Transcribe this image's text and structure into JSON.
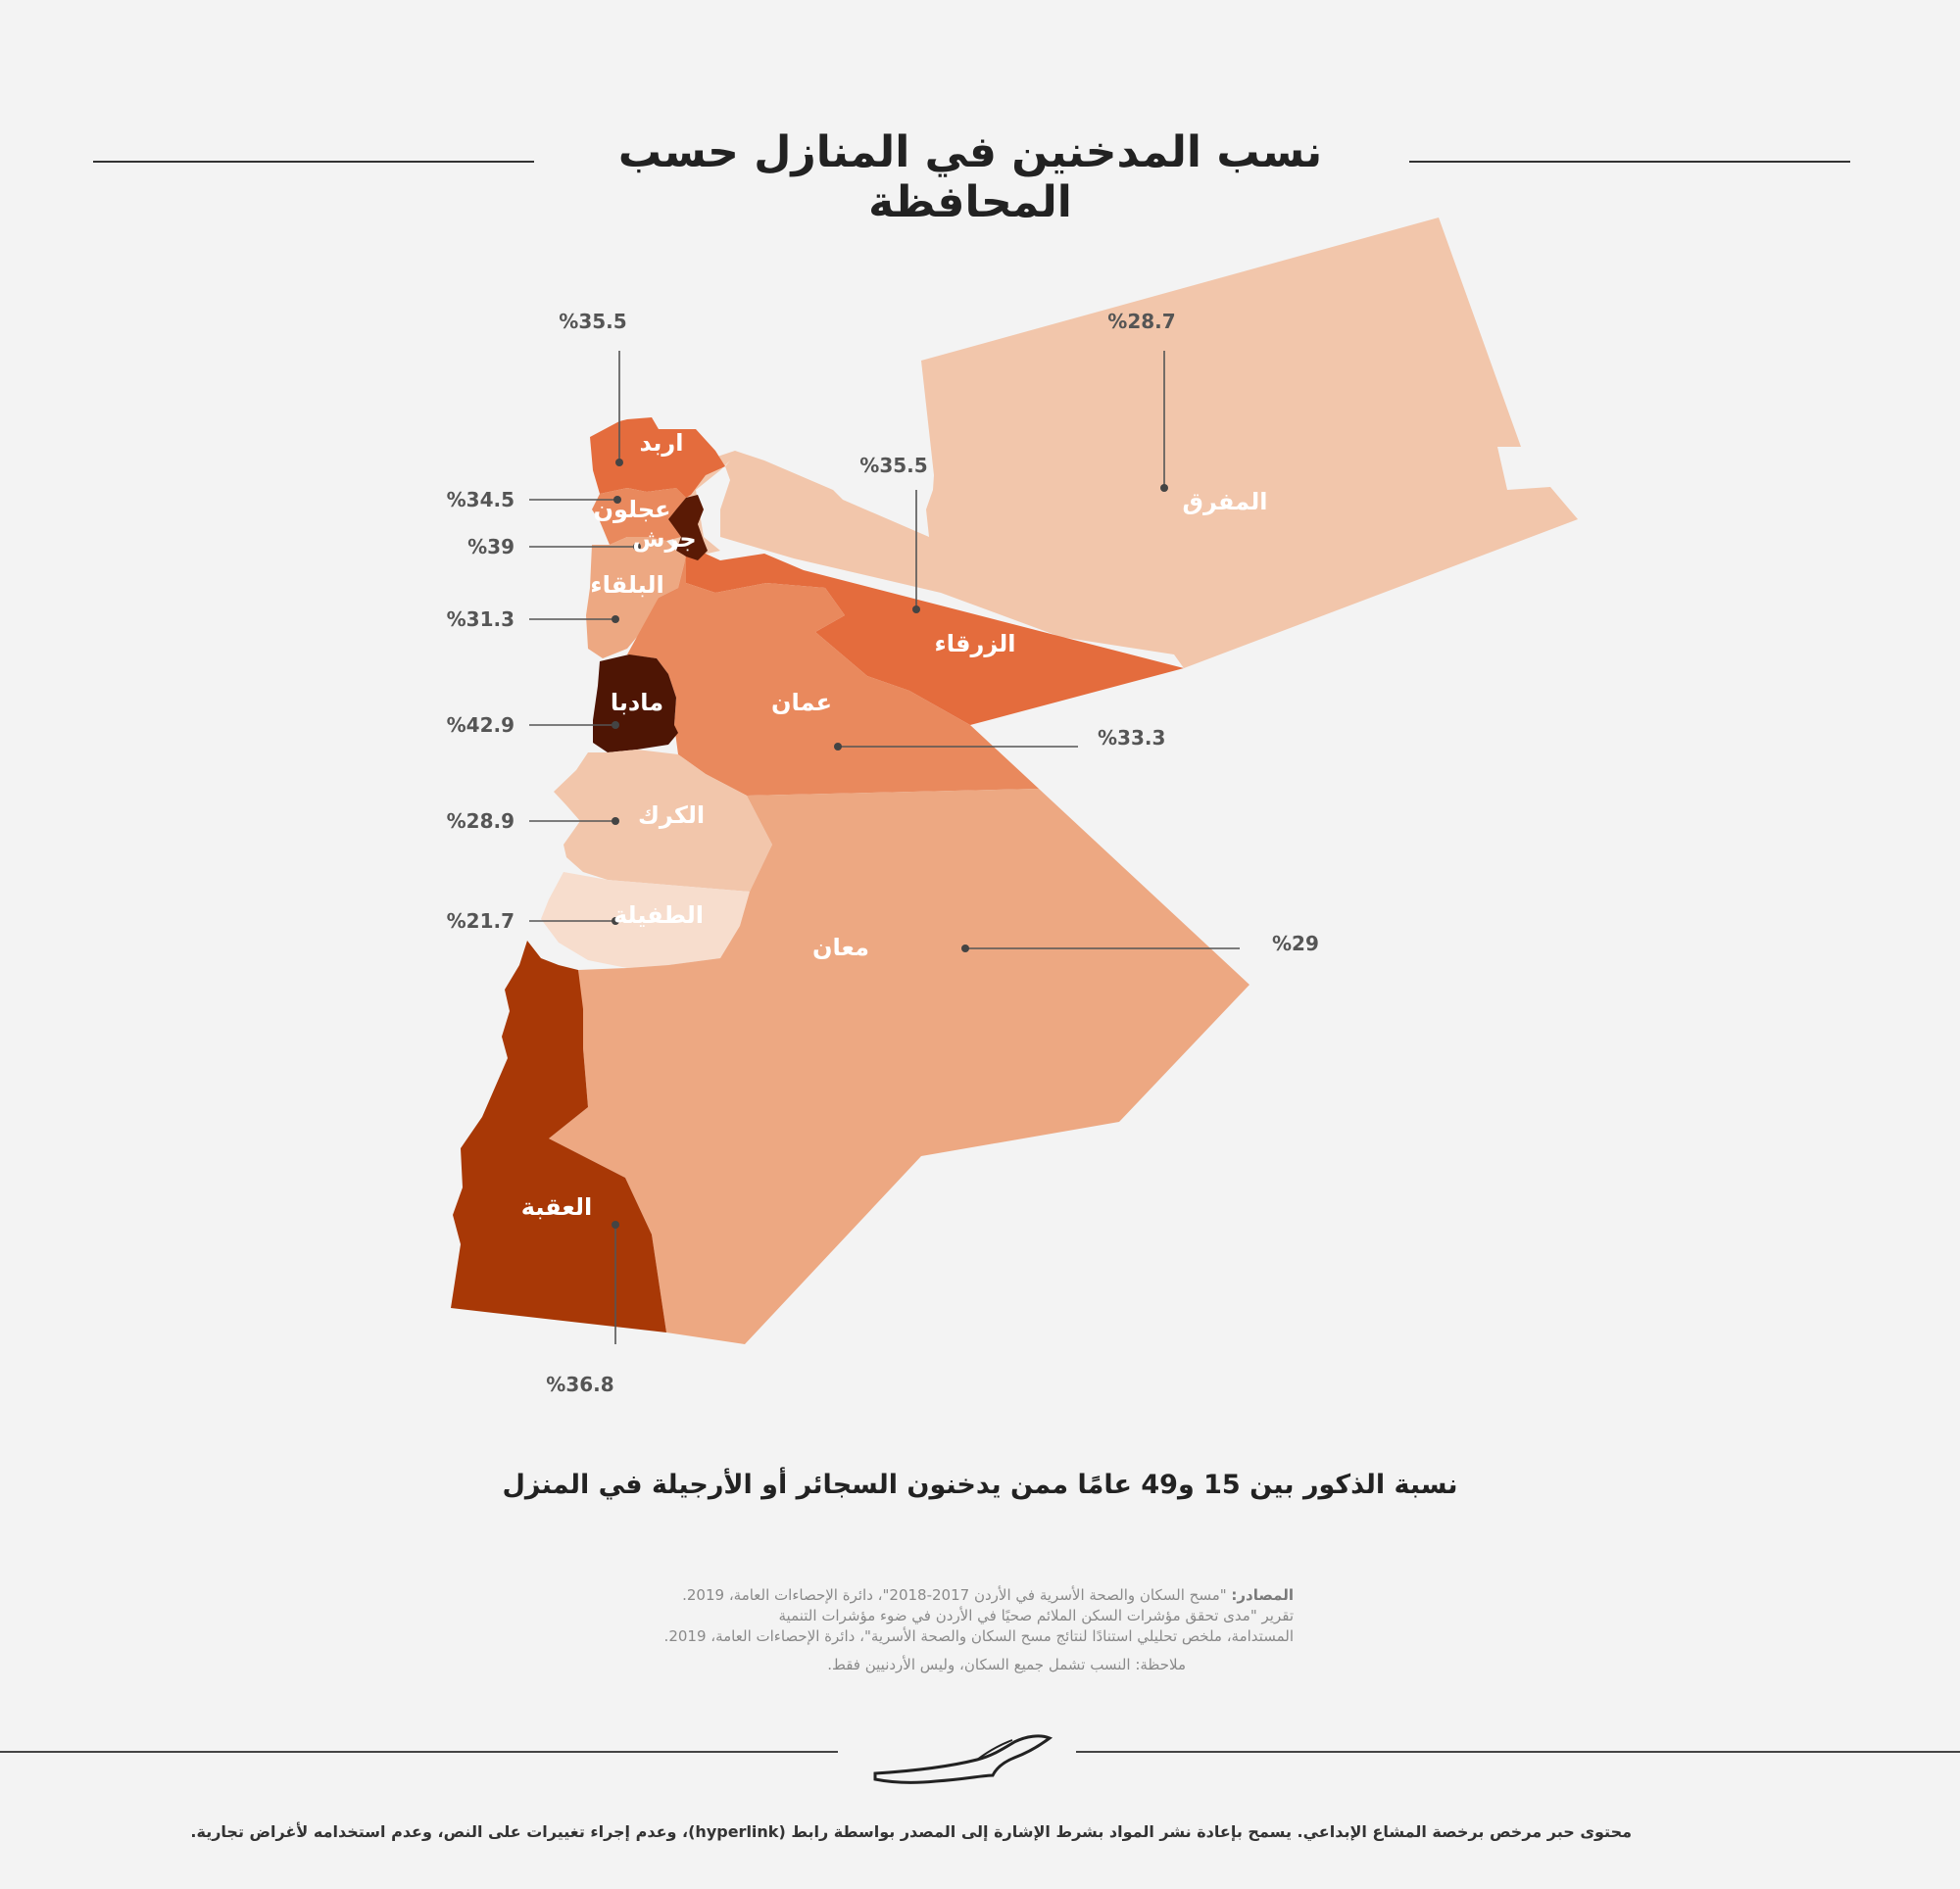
{
  "title": "نسب المدخنين في المنازل حسب المحافظة",
  "subtitle": "نسبة الذكور بين 15 و49 عامًا ممن يدخنون السجائر أو الأرجيلة في المنزل",
  "sources": {
    "label": "المصادر:",
    "line1": "\"مسح السكان والصحة الأسرية في الأردن 2017-2018\"، دائرة الإحصاءات العامة، 2019.",
    "line2": "تقرير \"مدى تحقق مؤشرات السكن الملائم صحيًا في الأردن في ضوء مؤشرات التنمية",
    "line3": "المستدامة، ملخص تحليلي استنادًا لنتائج مسح السكان والصحة الأسرية\"، دائرة الإحصاءات العامة، 2019."
  },
  "note": "ملاحظة: النسب تشمل جميع السكان، وليس الأردنيين فقط.",
  "license": "محتوى حبر مرخص برخصة المشاع الإبداعي. يسمح بإعادة نشر المواد بشرط الإشارة إلى المصدر بواسطة رابط (hyperlink)، وعدم إجراء تغييرات على النص، وعدم استخدامه لأغراض تجارية.",
  "legend_colors": {
    "very_light": "#f4d2bd",
    "light": "#efbfa1",
    "light_medium": "#eda882",
    "medium": "#e9895d",
    "medium_dark": "#e46c3d",
    "dark": "#a83806",
    "darkest": "#4e1504"
  },
  "regions": [
    {
      "id": "irbid",
      "name": "اربد",
      "value": "%35.5",
      "color": "#e46c3d"
    },
    {
      "id": "ajloun",
      "name": "عجلون",
      "value": "%34.5",
      "color": "#e9895d"
    },
    {
      "id": "jerash",
      "name": "جرش",
      "value": "%39",
      "color": "#5a1a05"
    },
    {
      "id": "balqa",
      "name": "البلقاء",
      "value": "%31.3",
      "color": "#eda882"
    },
    {
      "id": "madaba",
      "name": "مادبا",
      "value": "%42.9",
      "color": "#4e1504"
    },
    {
      "id": "karak",
      "name": "الكرك",
      "value": "%28.9",
      "color": "#f2c6ab"
    },
    {
      "id": "tafilah",
      "name": "الطفيلة",
      "value": "%21.7",
      "color": "#f7ddcd"
    },
    {
      "id": "aqaba",
      "name": "العقبة",
      "value": "%36.8",
      "color": "#a83806"
    },
    {
      "id": "maan",
      "name": "معان",
      "value": "%29",
      "color": "#eda882"
    },
    {
      "id": "amman",
      "name": "عمان",
      "value": "%33.3",
      "color": "#e9895d"
    },
    {
      "id": "zarqa",
      "name": "الزرقاء",
      "value": "%35.5",
      "color": "#e46c3d"
    },
    {
      "id": "mafraq",
      "name": "المفرق",
      "value": "%28.7",
      "color": "#f2c6ab"
    }
  ]
}
